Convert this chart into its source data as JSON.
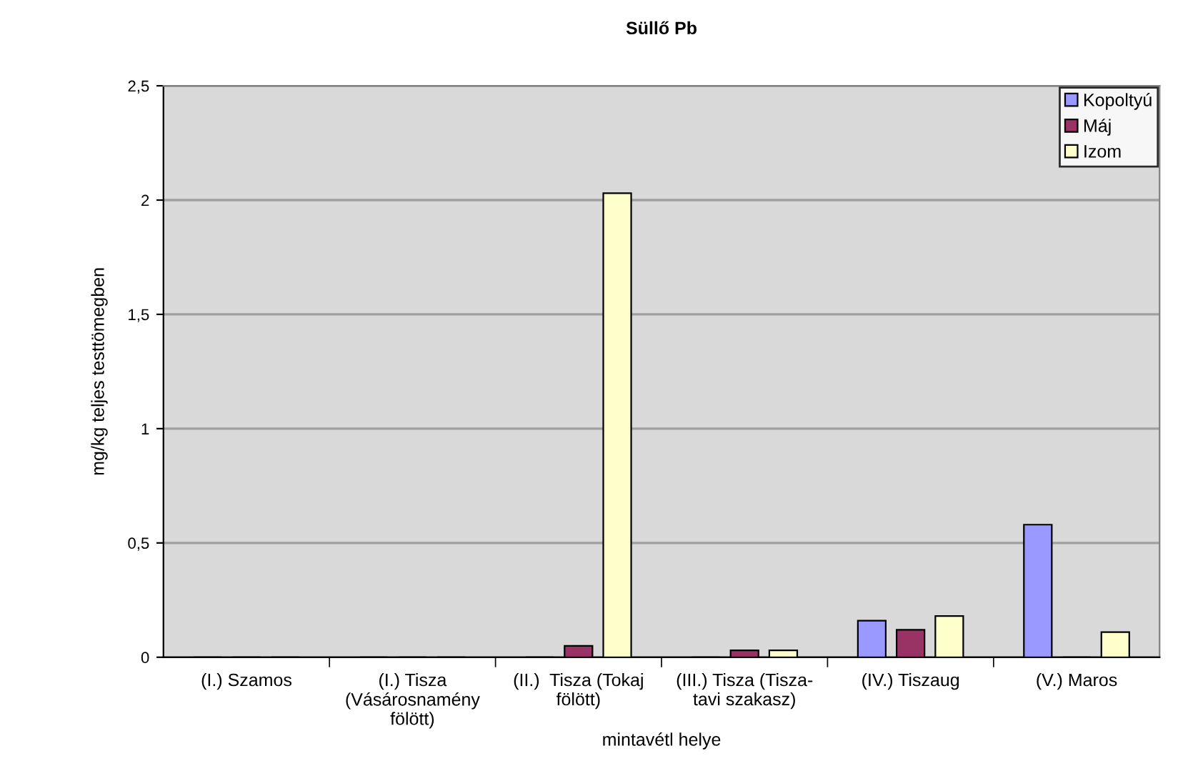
{
  "chart_data": {
    "type": "bar",
    "title": "Süllő Pb",
    "xlabel": "mintavétl helye",
    "ylabel": "mg/kg teljes testtömegben",
    "categories": [
      "(I.) Szamos",
      "(I.) Tisza\n(Vásárosnamény\nfölött)",
      "(II.)  Tisza (Tokaj\nfölött)",
      "(III.) Tisza (Tisza-\ntavi szakasz)",
      "(IV.) Tiszaug",
      "(V.) Maros"
    ],
    "series": [
      {
        "name": "Kopoltyú",
        "color": "#9999ff",
        "values": [
          0,
          0,
          0,
          0,
          0.16,
          0.58
        ]
      },
      {
        "name": "Máj",
        "color": "#993366",
        "values": [
          0,
          0,
          0.05,
          0.03,
          0.12,
          0
        ]
      },
      {
        "name": "Izom",
        "color": "#ffffcc",
        "values": [
          0,
          0,
          2.03,
          0.03,
          0.18,
          0.11
        ]
      }
    ],
    "ylim": [
      0,
      2.5
    ],
    "yticks": [
      0,
      {
        "value": 0.5,
        "label": "0,5"
      },
      1,
      {
        "value": 1.5,
        "label": "1,5"
      },
      2,
      {
        "value": 2.5,
        "label": "2,5"
      }
    ],
    "grid": "y",
    "legend": "top right"
  }
}
